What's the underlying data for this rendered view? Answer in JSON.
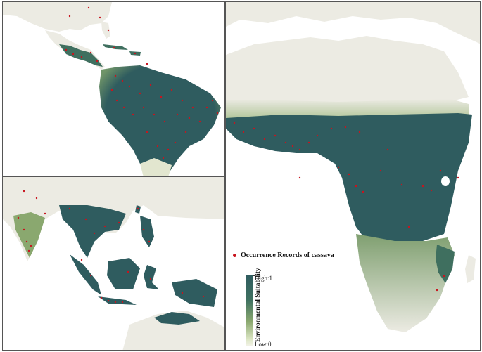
{
  "legend": {
    "occurrence_label": "Occurrence Records of cassava",
    "scale_title": "Environmental Suitability",
    "high_label": "High:1",
    "low_label": "Low:0"
  },
  "colors": {
    "high_suitability": "#2f5c5f",
    "mid_suitability": "#8aa86f",
    "low_suitability": "#f1f0e6",
    "land_background": "#ecebe3",
    "occurrence_point": "#c8141e",
    "water": "#ffffff"
  },
  "panels": [
    "Americas",
    "South and Southeast Asia",
    "Africa"
  ]
}
